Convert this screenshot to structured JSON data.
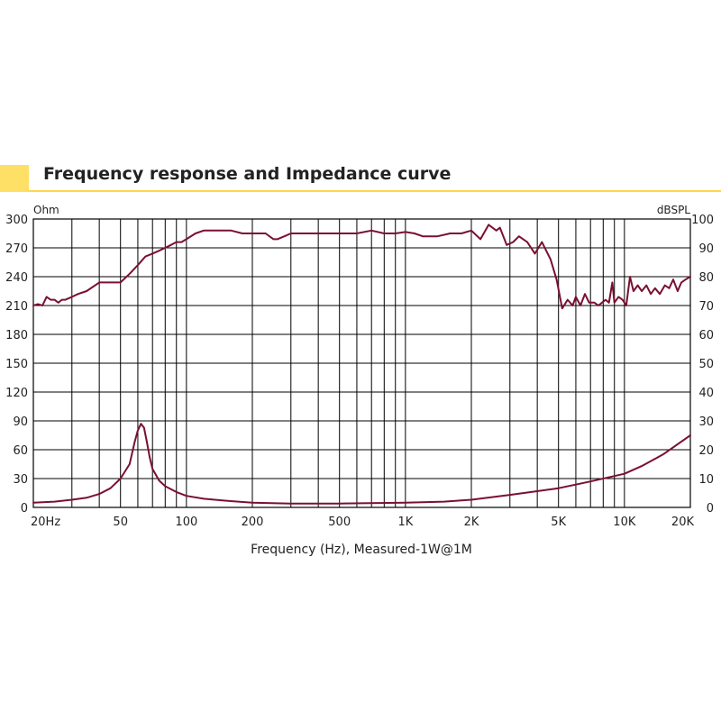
{
  "header": {
    "title": "Frequency response and Impedance curve"
  },
  "chart_data": {
    "type": "line",
    "title": "Frequency response and Impedance curve",
    "xlabel": "Frequency (Hz), Measured-1W@1M",
    "xscale": "log",
    "xlim": [
      20,
      20000
    ],
    "x_ticks": [
      20,
      50,
      100,
      200,
      500,
      1000,
      2000,
      5000,
      10000,
      20000
    ],
    "x_tick_labels": [
      "20Hz",
      "50",
      "100",
      "200",
      "500",
      "1K",
      "2K",
      "5K",
      "10K",
      "20K"
    ],
    "y_left": {
      "label": "Ohm",
      "lim": [
        0,
        300
      ],
      "ticks": [
        0,
        30,
        60,
        90,
        120,
        150,
        180,
        210,
        240,
        270,
        300
      ]
    },
    "y_right": {
      "label": "dBSPL",
      "lim": [
        0,
        100
      ],
      "ticks": [
        0,
        10,
        20,
        30,
        40,
        50,
        60,
        70,
        80,
        90,
        100
      ]
    },
    "grid": true,
    "line_color": "#7a1030",
    "series": [
      {
        "axis": "right",
        "x": [
          20,
          21,
          22,
          23,
          24,
          25,
          26,
          27,
          28,
          30,
          32,
          35,
          40,
          45,
          50,
          55,
          60,
          65,
          70,
          75,
          80,
          85,
          90,
          95,
          100,
          110,
          120,
          140,
          160,
          180,
          200,
          230,
          250,
          260,
          280,
          300,
          400,
          500,
          600,
          700,
          800,
          900,
          1000,
          1100,
          1200,
          1400,
          1600,
          1800,
          2000,
          2200,
          2400,
          2600,
          2700,
          2900,
          3100,
          3300,
          3600,
          3900,
          4200,
          4600,
          4900,
          5200,
          5500,
          5800,
          6000,
          6300,
          6600,
          6900,
          7300,
          7600,
          7900,
          8200,
          8500,
          8800,
          9000,
          9400,
          9800,
          10200,
          10600,
          11000,
          11500,
          12000,
          12600,
          13200,
          13800,
          14500,
          15300,
          16000,
          16700,
          17500,
          18200,
          19000,
          20000
        ],
        "y": [
          70,
          70.5,
          70,
          73,
          72,
          72,
          71,
          72,
          72,
          73,
          74,
          75,
          78,
          78,
          78,
          81,
          84,
          87,
          88,
          89,
          90,
          91,
          92,
          92,
          93,
          95,
          96,
          96,
          96,
          95,
          95,
          95,
          93,
          93,
          94,
          95,
          95,
          95,
          95,
          96,
          95,
          95,
          95.5,
          95,
          94,
          94,
          95,
          95,
          96,
          93,
          98,
          96,
          97,
          91,
          92,
          94,
          92,
          88,
          92,
          86,
          79,
          69,
          72,
          70,
          73,
          70,
          74,
          71,
          71,
          70,
          71,
          72,
          71,
          78,
          71,
          73,
          72,
          70,
          80,
          75,
          77,
          75,
          77,
          74,
          76,
          74,
          77,
          76,
          79,
          75,
          78,
          79,
          80
        ]
      },
      {
        "axis": "left",
        "x": [
          20,
          25,
          30,
          35,
          40,
          45,
          50,
          55,
          58,
          60,
          62,
          64,
          66,
          68,
          70,
          75,
          80,
          90,
          100,
          120,
          150,
          200,
          300,
          500,
          1000,
          1500,
          2000,
          3000,
          5000,
          7000,
          10000,
          12000,
          15000,
          20000
        ],
        "y": [
          5,
          6,
          8,
          10,
          14,
          20,
          30,
          45,
          68,
          80,
          87,
          83,
          68,
          52,
          40,
          28,
          22,
          16,
          12,
          9,
          7,
          5,
          4,
          4,
          5,
          6,
          8,
          13,
          20,
          27,
          35,
          43,
          55,
          75
        ]
      }
    ]
  }
}
